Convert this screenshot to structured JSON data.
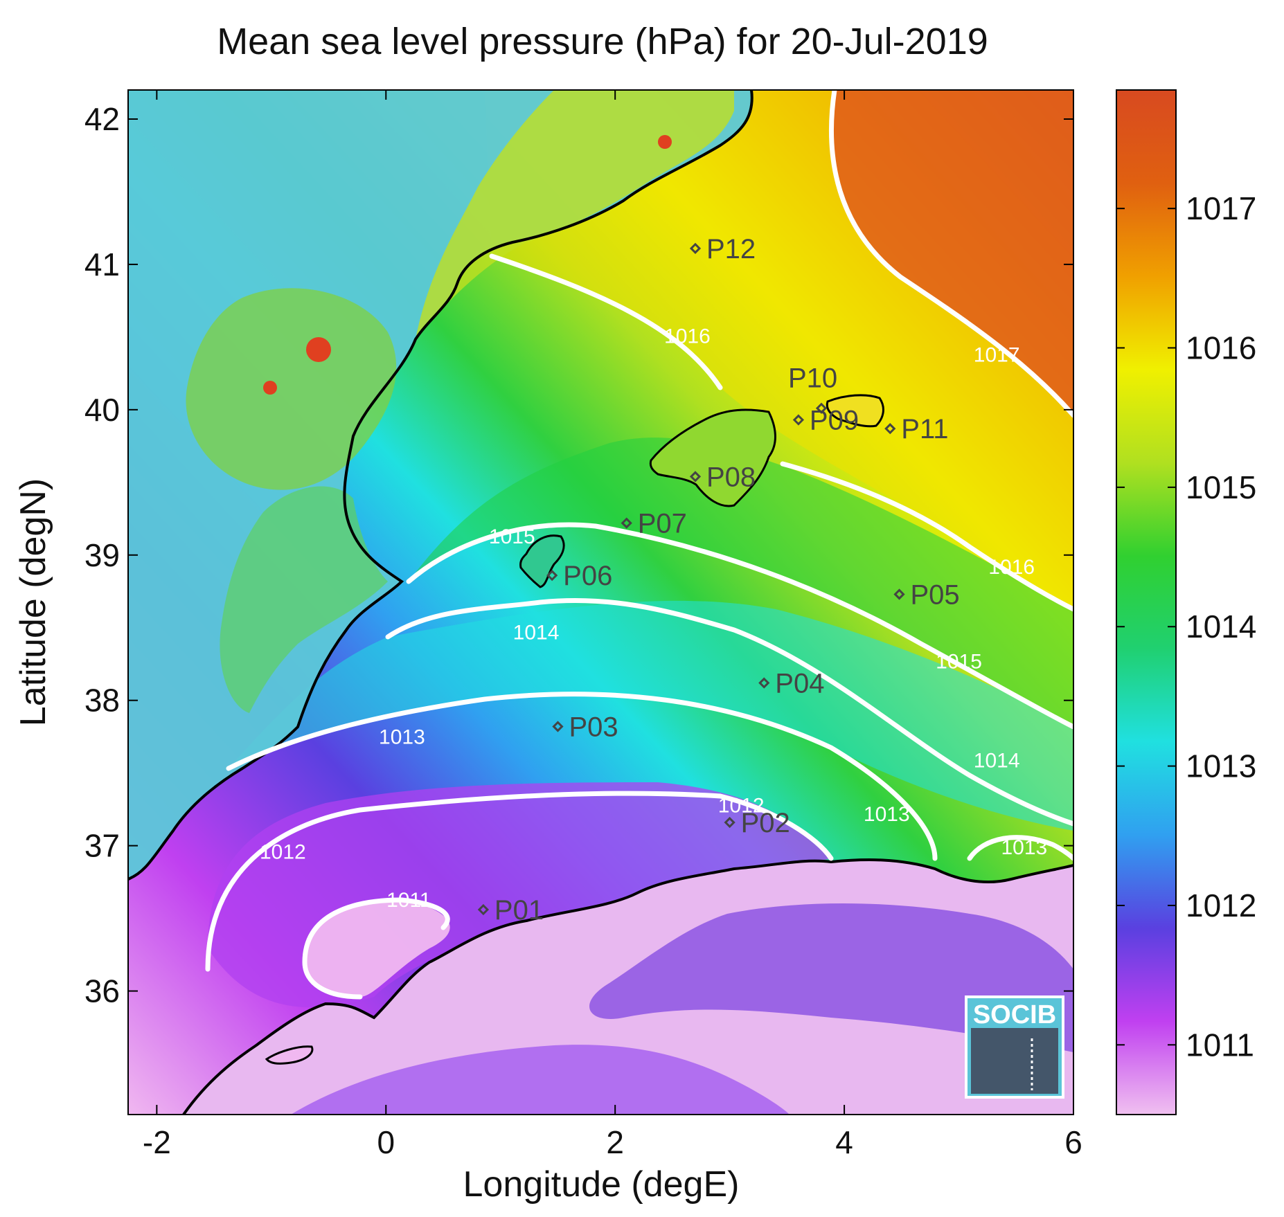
{
  "title": "Mean sea level pressure (hPa) for 20-Jul-2019",
  "xlabel": "Longitude (degE)",
  "ylabel": "Latitude (degN)",
  "x_ticks": [
    {
      "value": -2,
      "label": "-2"
    },
    {
      "value": 0,
      "label": "0"
    },
    {
      "value": 2,
      "label": "2"
    },
    {
      "value": 4,
      "label": "4"
    },
    {
      "value": 6,
      "label": "6"
    }
  ],
  "y_ticks": [
    {
      "value": 36,
      "label": "36"
    },
    {
      "value": 37,
      "label": "37"
    },
    {
      "value": 38,
      "label": "38"
    },
    {
      "value": 39,
      "label": "39"
    },
    {
      "value": 40,
      "label": "40"
    },
    {
      "value": 41,
      "label": "41"
    },
    {
      "value": 42,
      "label": "42"
    }
  ],
  "colorbar": {
    "ticks": [
      {
        "value": 1011,
        "label": "1011"
      },
      {
        "value": 1012,
        "label": "1012"
      },
      {
        "value": 1013,
        "label": "1013"
      },
      {
        "value": 1014,
        "label": "1014"
      },
      {
        "value": 1015,
        "label": "1015"
      },
      {
        "value": 1016,
        "label": "1016"
      },
      {
        "value": 1017,
        "label": "1017"
      }
    ],
    "colors": [
      "#f0c0f0",
      "#c040f0",
      "#5a40e0",
      "#30a0f0",
      "#20e0e0",
      "#20d070",
      "#30d030",
      "#b0e020",
      "#f0f000",
      "#f0a000",
      "#e06010",
      "#d84a20"
    ]
  },
  "contour_labels": [
    {
      "text": "1016",
      "lon": 2.63,
      "lat": 40.46
    },
    {
      "text": "1016",
      "lon": 5.46,
      "lat": 38.87
    },
    {
      "text": "1017",
      "lon": 5.33,
      "lat": 40.33
    },
    {
      "text": "1015",
      "lon": 1.1,
      "lat": 39.08
    },
    {
      "text": "1015",
      "lon": 5.0,
      "lat": 38.22
    },
    {
      "text": "1014",
      "lon": 1.31,
      "lat": 38.42
    },
    {
      "text": "1014",
      "lon": 5.33,
      "lat": 37.54
    },
    {
      "text": "1013",
      "lon": 0.14,
      "lat": 37.7
    },
    {
      "text": "1013",
      "lon": 4.37,
      "lat": 37.17
    },
    {
      "text": "1013",
      "lon": 5.57,
      "lat": 36.94
    },
    {
      "text": "1012",
      "lon": -0.9,
      "lat": 36.91
    },
    {
      "text": "1012",
      "lon": 3.1,
      "lat": 37.23
    },
    {
      "text": "1011",
      "lon": 0.2,
      "lat": 36.58
    }
  ],
  "stations": [
    {
      "id": "P01",
      "lon": 0.85,
      "lat": 36.56
    },
    {
      "id": "P02",
      "lon": 3.0,
      "lat": 37.16
    },
    {
      "id": "P03",
      "lon": 1.5,
      "lat": 37.82
    },
    {
      "id": "P04",
      "lon": 3.3,
      "lat": 38.12
    },
    {
      "id": "P05",
      "lon": 4.48,
      "lat": 38.73
    },
    {
      "id": "P06",
      "lon": 1.45,
      "lat": 38.86
    },
    {
      "id": "P07",
      "lon": 2.1,
      "lat": 39.22
    },
    {
      "id": "P08",
      "lon": 2.7,
      "lat": 39.54
    },
    {
      "id": "P09",
      "lon": 3.6,
      "lat": 39.93
    },
    {
      "id": "P10",
      "lon": 3.8,
      "lat": 40.01
    },
    {
      "id": "P11",
      "lon": 4.4,
      "lat": 39.87
    },
    {
      "id": "P12",
      "lon": 2.7,
      "lat": 41.11
    }
  ],
  "logo_text": "SOCIB"
}
